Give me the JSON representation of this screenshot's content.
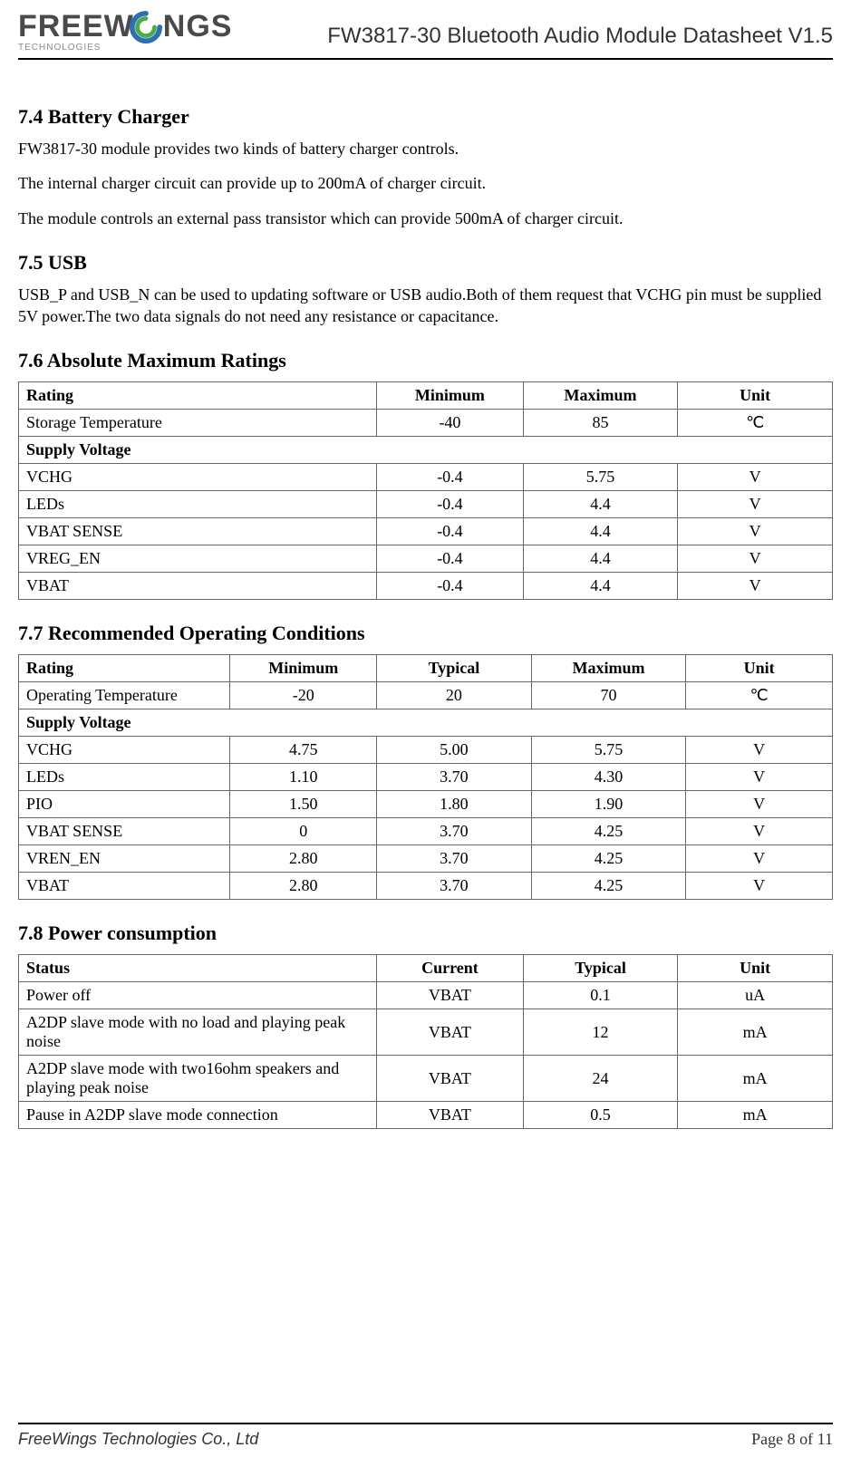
{
  "header": {
    "logo_line1": "FREEW",
    "logo_line1b": "NGS",
    "logo_sub": "TECHNOLOGIES",
    "doc_title": "FW3817-30 Bluetooth Audio Module Datasheet V1.5",
    "logo_colors": {
      "text": "#4a4a4a",
      "sub": "#8a8a8a",
      "swoosh_outer": "#2e6fb0",
      "swoosh_inner": "#4aa94a"
    }
  },
  "sections": {
    "s74": {
      "title": "7.4 Battery Charger",
      "p1": "FW3817-30 module provides two kinds of battery charger controls.",
      "p2": "The internal charger circuit can provide up to 200mA of charger circuit.",
      "p3": "The module controls an external pass transistor which can provide 500mA of charger circuit."
    },
    "s75": {
      "title": "7.5 USB",
      "p1": "USB_P and USB_N can be used to updating software or USB audio.Both of them request that VCHG pin must be supplied 5V power.The two data signals do not need any resistance or capacitance."
    },
    "s76": {
      "title": "7.6 Absolute Maximum Ratings",
      "table": {
        "col_widths": [
          "44%",
          "18%",
          "19%",
          "19%"
        ],
        "headers": [
          "Rating",
          "Minimum",
          "Maximum",
          "Unit"
        ],
        "rows": [
          {
            "cells": [
              "Storage Temperature",
              "-40",
              "85",
              "℃"
            ]
          },
          {
            "span": true,
            "label": "Supply Voltage"
          },
          {
            "cells": [
              "VCHG",
              "-0.4",
              "5.75",
              "V"
            ]
          },
          {
            "cells": [
              "LEDs",
              "-0.4",
              "4.4",
              "V"
            ]
          },
          {
            "cells": [
              "VBAT SENSE",
              "-0.4",
              "4.4",
              "V"
            ]
          },
          {
            "cells": [
              "VREG_EN",
              "-0.4",
              "4.4",
              "V"
            ]
          },
          {
            "cells": [
              "VBAT",
              "-0.4",
              "4.4",
              "V"
            ]
          }
        ]
      }
    },
    "s77": {
      "title": "7.7 Recommended Operating Conditions",
      "table": {
        "col_widths": [
          "26%",
          "18%",
          "19%",
          "19%",
          "18%"
        ],
        "headers": [
          "Rating",
          "Minimum",
          "Typical",
          "Maximum",
          "Unit"
        ],
        "rows": [
          {
            "cells": [
              "Operating Temperature",
              "-20",
              "20",
              "70",
              "℃"
            ]
          },
          {
            "span": true,
            "label": "Supply Voltage"
          },
          {
            "cells": [
              "VCHG",
              "4.75",
              "5.00",
              "5.75",
              "V"
            ]
          },
          {
            "cells": [
              "LEDs",
              "1.10",
              "3.70",
              "4.30",
              "V"
            ]
          },
          {
            "cells": [
              "PIO",
              "1.50",
              "1.80",
              "1.90",
              "V"
            ]
          },
          {
            "cells": [
              "VBAT SENSE",
              "0",
              "3.70",
              "4.25",
              "V"
            ]
          },
          {
            "cells": [
              "VREN_EN",
              "2.80",
              "3.70",
              "4.25",
              "V"
            ]
          },
          {
            "cells": [
              "VBAT",
              "2.80",
              "3.70",
              "4.25",
              "V"
            ]
          }
        ]
      }
    },
    "s78": {
      "title": "7.8 Power consumption",
      "table": {
        "col_widths": [
          "44%",
          "18%",
          "19%",
          "19%"
        ],
        "headers": [
          "Status",
          "Current",
          "Typical",
          "Unit"
        ],
        "rows": [
          {
            "cells": [
              "Power off",
              "VBAT",
              "0.1",
              "uA"
            ]
          },
          {
            "cells": [
              "A2DP slave mode with no load and playing peak noise",
              "VBAT",
              "12",
              "mA"
            ]
          },
          {
            "cells": [
              "A2DP slave mode with two16ohm speakers and playing peak noise",
              "VBAT",
              "24",
              "mA"
            ]
          },
          {
            "cells": [
              "Pause in A2DP slave mode connection",
              "VBAT",
              "0.5",
              "mA"
            ]
          }
        ]
      }
    }
  },
  "footer": {
    "left": "FreeWings Technologies Co., Ltd",
    "right": "Page 8 of 11"
  },
  "style": {
    "page_bg": "#ffffff",
    "text_color": "#000000",
    "rule_color": "#000000",
    "table_border": "#666666",
    "body_fontsize": 18,
    "heading_fontsize": 22,
    "title_fontsize": 24
  }
}
